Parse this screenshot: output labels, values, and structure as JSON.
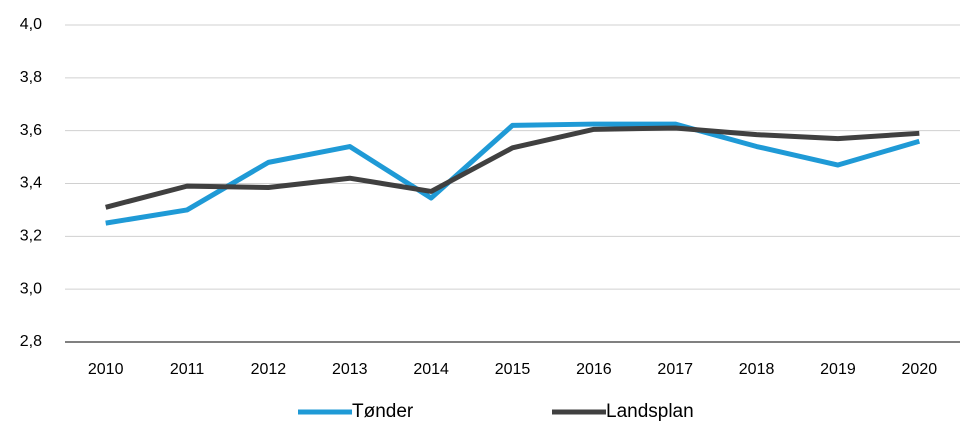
{
  "chart_data": {
    "type": "line",
    "categories": [
      "2010",
      "2011",
      "2012",
      "2013",
      "2014",
      "2015",
      "2016",
      "2017",
      "2018",
      "2019",
      "2020"
    ],
    "series": [
      {
        "name": "Tønder",
        "color": "#1f9ad6",
        "values": [
          3.25,
          3.3,
          3.48,
          3.54,
          3.345,
          3.62,
          3.625,
          3.625,
          3.54,
          3.47,
          3.56
        ]
      },
      {
        "name": "Landsplan",
        "color": "#404040",
        "values": [
          3.31,
          3.39,
          3.385,
          3.42,
          3.37,
          3.535,
          3.605,
          3.61,
          3.585,
          3.57,
          3.59
        ]
      }
    ],
    "ylim": [
      2.8,
      4.0
    ],
    "yticks": [
      {
        "value": 2.8,
        "label": "2,8"
      },
      {
        "value": 3.0,
        "label": "3,0"
      },
      {
        "value": 3.2,
        "label": "3,2"
      },
      {
        "value": 3.4,
        "label": "3,4"
      },
      {
        "value": 3.6,
        "label": "3,6"
      },
      {
        "value": 3.8,
        "label": "3,8"
      },
      {
        "value": 4.0,
        "label": "4,0"
      }
    ],
    "grid": true,
    "legend": "bottom"
  }
}
